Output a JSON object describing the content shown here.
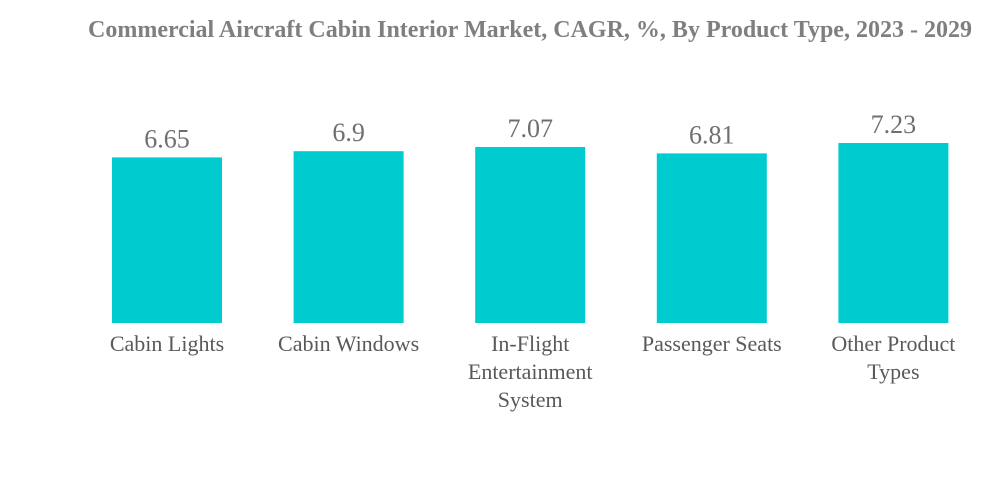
{
  "chart_data": {
    "type": "bar",
    "title": "Commercial Aircraft Cabin Interior Market, CAGR, %, By Product Type, 2023 - 2029",
    "xlabel": "",
    "ylabel": "",
    "categories": [
      [
        "Cabin Lights"
      ],
      [
        "Cabin Windows"
      ],
      [
        "In-Flight",
        "Entertainment",
        "System"
      ],
      [
        "Passenger Seats"
      ],
      [
        "Other Product",
        "Types"
      ]
    ],
    "values": [
      6.65,
      6.9,
      7.07,
      6.81,
      7.23
    ],
    "value_labels": [
      "6.65",
      "6.9",
      "7.07",
      "6.81",
      "7.23"
    ],
    "bar_color": "#00cccf",
    "grid": false,
    "legend": "none"
  }
}
